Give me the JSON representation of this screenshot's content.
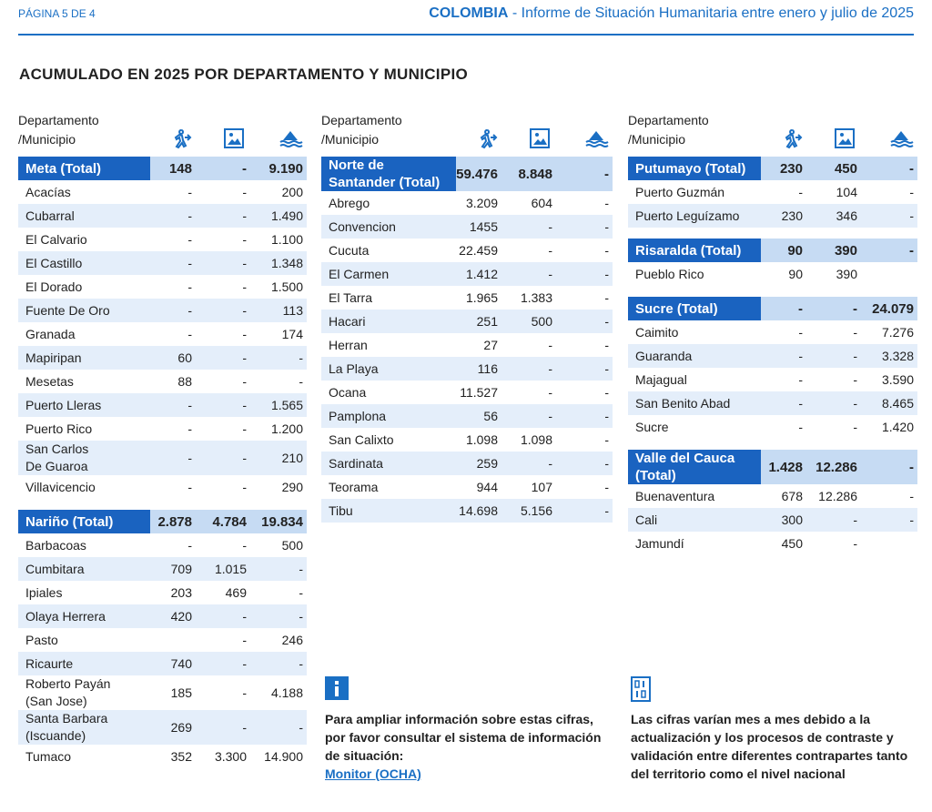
{
  "header": {
    "page": "PÁGINA 5 DE 4",
    "country": "COLOMBIA",
    "title": "- Informe de Situación Humanitaria entre enero y julio de 2025"
  },
  "section_title": "ACUMULADO EN 2025 POR DEPARTAMENTO Y MUNICIPIO",
  "columns": [
    {
      "header": "Departamento\n/Municipio",
      "groups": [
        {
          "total": [
            "Meta (Total)",
            "148",
            "-",
            "9.190"
          ],
          "rows": [
            [
              "Acacías",
              "-",
              "-",
              "200"
            ],
            [
              "Cubarral",
              "-",
              "-",
              "1.490"
            ],
            [
              "El Calvario",
              "-",
              "-",
              "1.100"
            ],
            [
              "El Castillo",
              "-",
              "-",
              "1.348"
            ],
            [
              "El Dorado",
              "-",
              "-",
              "1.500"
            ],
            [
              "Fuente De Oro",
              "-",
              "-",
              "113"
            ],
            [
              "Granada",
              "-",
              "-",
              "174"
            ],
            [
              "Mapiripan",
              "60",
              "-",
              "-"
            ],
            [
              "Mesetas",
              "88",
              "-",
              "-"
            ],
            [
              "Puerto Lleras",
              "-",
              "-",
              "1.565"
            ],
            [
              "Puerto Rico",
              "-",
              "-",
              "1.200"
            ],
            [
              "San Carlos\nDe Guaroa",
              "-",
              "-",
              "210"
            ],
            [
              "Villavicencio",
              "-",
              "-",
              "290"
            ]
          ]
        },
        {
          "total": [
            "Nariño (Total)",
            "2.878",
            "4.784",
            "19.834"
          ],
          "rows": [
            [
              "Barbacoas",
              "-",
              "-",
              "500"
            ],
            [
              "Cumbitara",
              "709",
              "1.015",
              "-"
            ],
            [
              "Ipiales",
              "203",
              "469",
              "-"
            ],
            [
              "Olaya Herrera",
              "420",
              "-",
              "-"
            ],
            [
              "Pasto",
              null,
              "-",
              "246"
            ],
            [
              "Ricaurte",
              "740",
              "-",
              "-"
            ],
            [
              "Roberto Payán\n(San Jose)",
              "185",
              "-",
              "4.188"
            ],
            [
              "Santa Barbara\n(Iscuande)",
              "269",
              "-",
              "-"
            ],
            [
              "Tumaco",
              "352",
              "3.300",
              "14.900"
            ]
          ]
        }
      ]
    },
    {
      "header": "Departamento\n/Municipio",
      "groups": [
        {
          "total": [
            "Norte de\nSantander (Total)",
            "59.476",
            "8.848",
            "-"
          ],
          "rows": [
            [
              "Abrego",
              "3.209",
              "604",
              "-"
            ],
            [
              "Convencion",
              "1455",
              "-",
              "-"
            ],
            [
              "Cucuta",
              "22.459",
              "-",
              "-"
            ],
            [
              "El Carmen",
              "1.412",
              "-",
              "-"
            ],
            [
              "El Tarra",
              "1.965",
              "1.383",
              "-"
            ],
            [
              "Hacari",
              "251",
              "500",
              "-"
            ],
            [
              "Herran",
              "27",
              "-",
              "-"
            ],
            [
              "La Playa",
              "116",
              "-",
              "-"
            ],
            [
              "Ocana",
              "11.527",
              "-",
              "-"
            ],
            [
              "Pamplona",
              "56",
              "-",
              "-"
            ],
            [
              "San Calixto",
              "1.098",
              "1.098",
              "-"
            ],
            [
              "Sardinata",
              "259",
              "-",
              "-"
            ],
            [
              "Teorama",
              "944",
              "107",
              "-"
            ],
            [
              "Tibu",
              "14.698",
              "5.156",
              "-"
            ]
          ]
        }
      ]
    },
    {
      "header": "Departamento\n/Municipio",
      "groups": [
        {
          "total": [
            "Putumayo (Total)",
            "230",
            "450",
            "-"
          ],
          "rows": [
            [
              "Puerto Guzmán",
              "-",
              "104",
              "-"
            ],
            [
              "Puerto Leguízamo",
              "230",
              "346",
              "-"
            ]
          ]
        },
        {
          "total": [
            "Risaralda (Total)",
            "90",
            "390",
            "-"
          ],
          "rows": [
            [
              "Pueblo Rico",
              "90",
              "390",
              null
            ]
          ]
        },
        {
          "total": [
            "Sucre (Total)",
            "-",
            "-",
            "24.079"
          ],
          "rows": [
            [
              "Caimito",
              "-",
              "-",
              "7.276"
            ],
            [
              "Guaranda",
              "-",
              "-",
              "3.328"
            ],
            [
              "Majagual",
              "-",
              "-",
              "3.590"
            ],
            [
              "San Benito Abad",
              "-",
              "-",
              "8.465"
            ],
            [
              "Sucre",
              "-",
              "-",
              "1.420"
            ]
          ]
        },
        {
          "total": [
            "Valle del Cauca\n(Total)",
            "1.428",
            "12.286",
            "-"
          ],
          "rows": [
            [
              "Buenaventura",
              "678",
              "12.286",
              "-"
            ],
            [
              "Cali",
              "300",
              "-",
              "-"
            ],
            [
              "Jamundí",
              "450",
              "-",
              null
            ]
          ]
        }
      ]
    }
  ],
  "notes": [
    {
      "text": "Para ampliar información sobre estas cifras, por favor consultar el sistema de información de situación:",
      "link": "Monitor (OCHA)"
    },
    {
      "text": "Las cifras varían mes a mes debido a la actualización y los procesos de contraste y validación entre diferentes contrapartes tanto del territorio como el nivel nacional"
    }
  ]
}
